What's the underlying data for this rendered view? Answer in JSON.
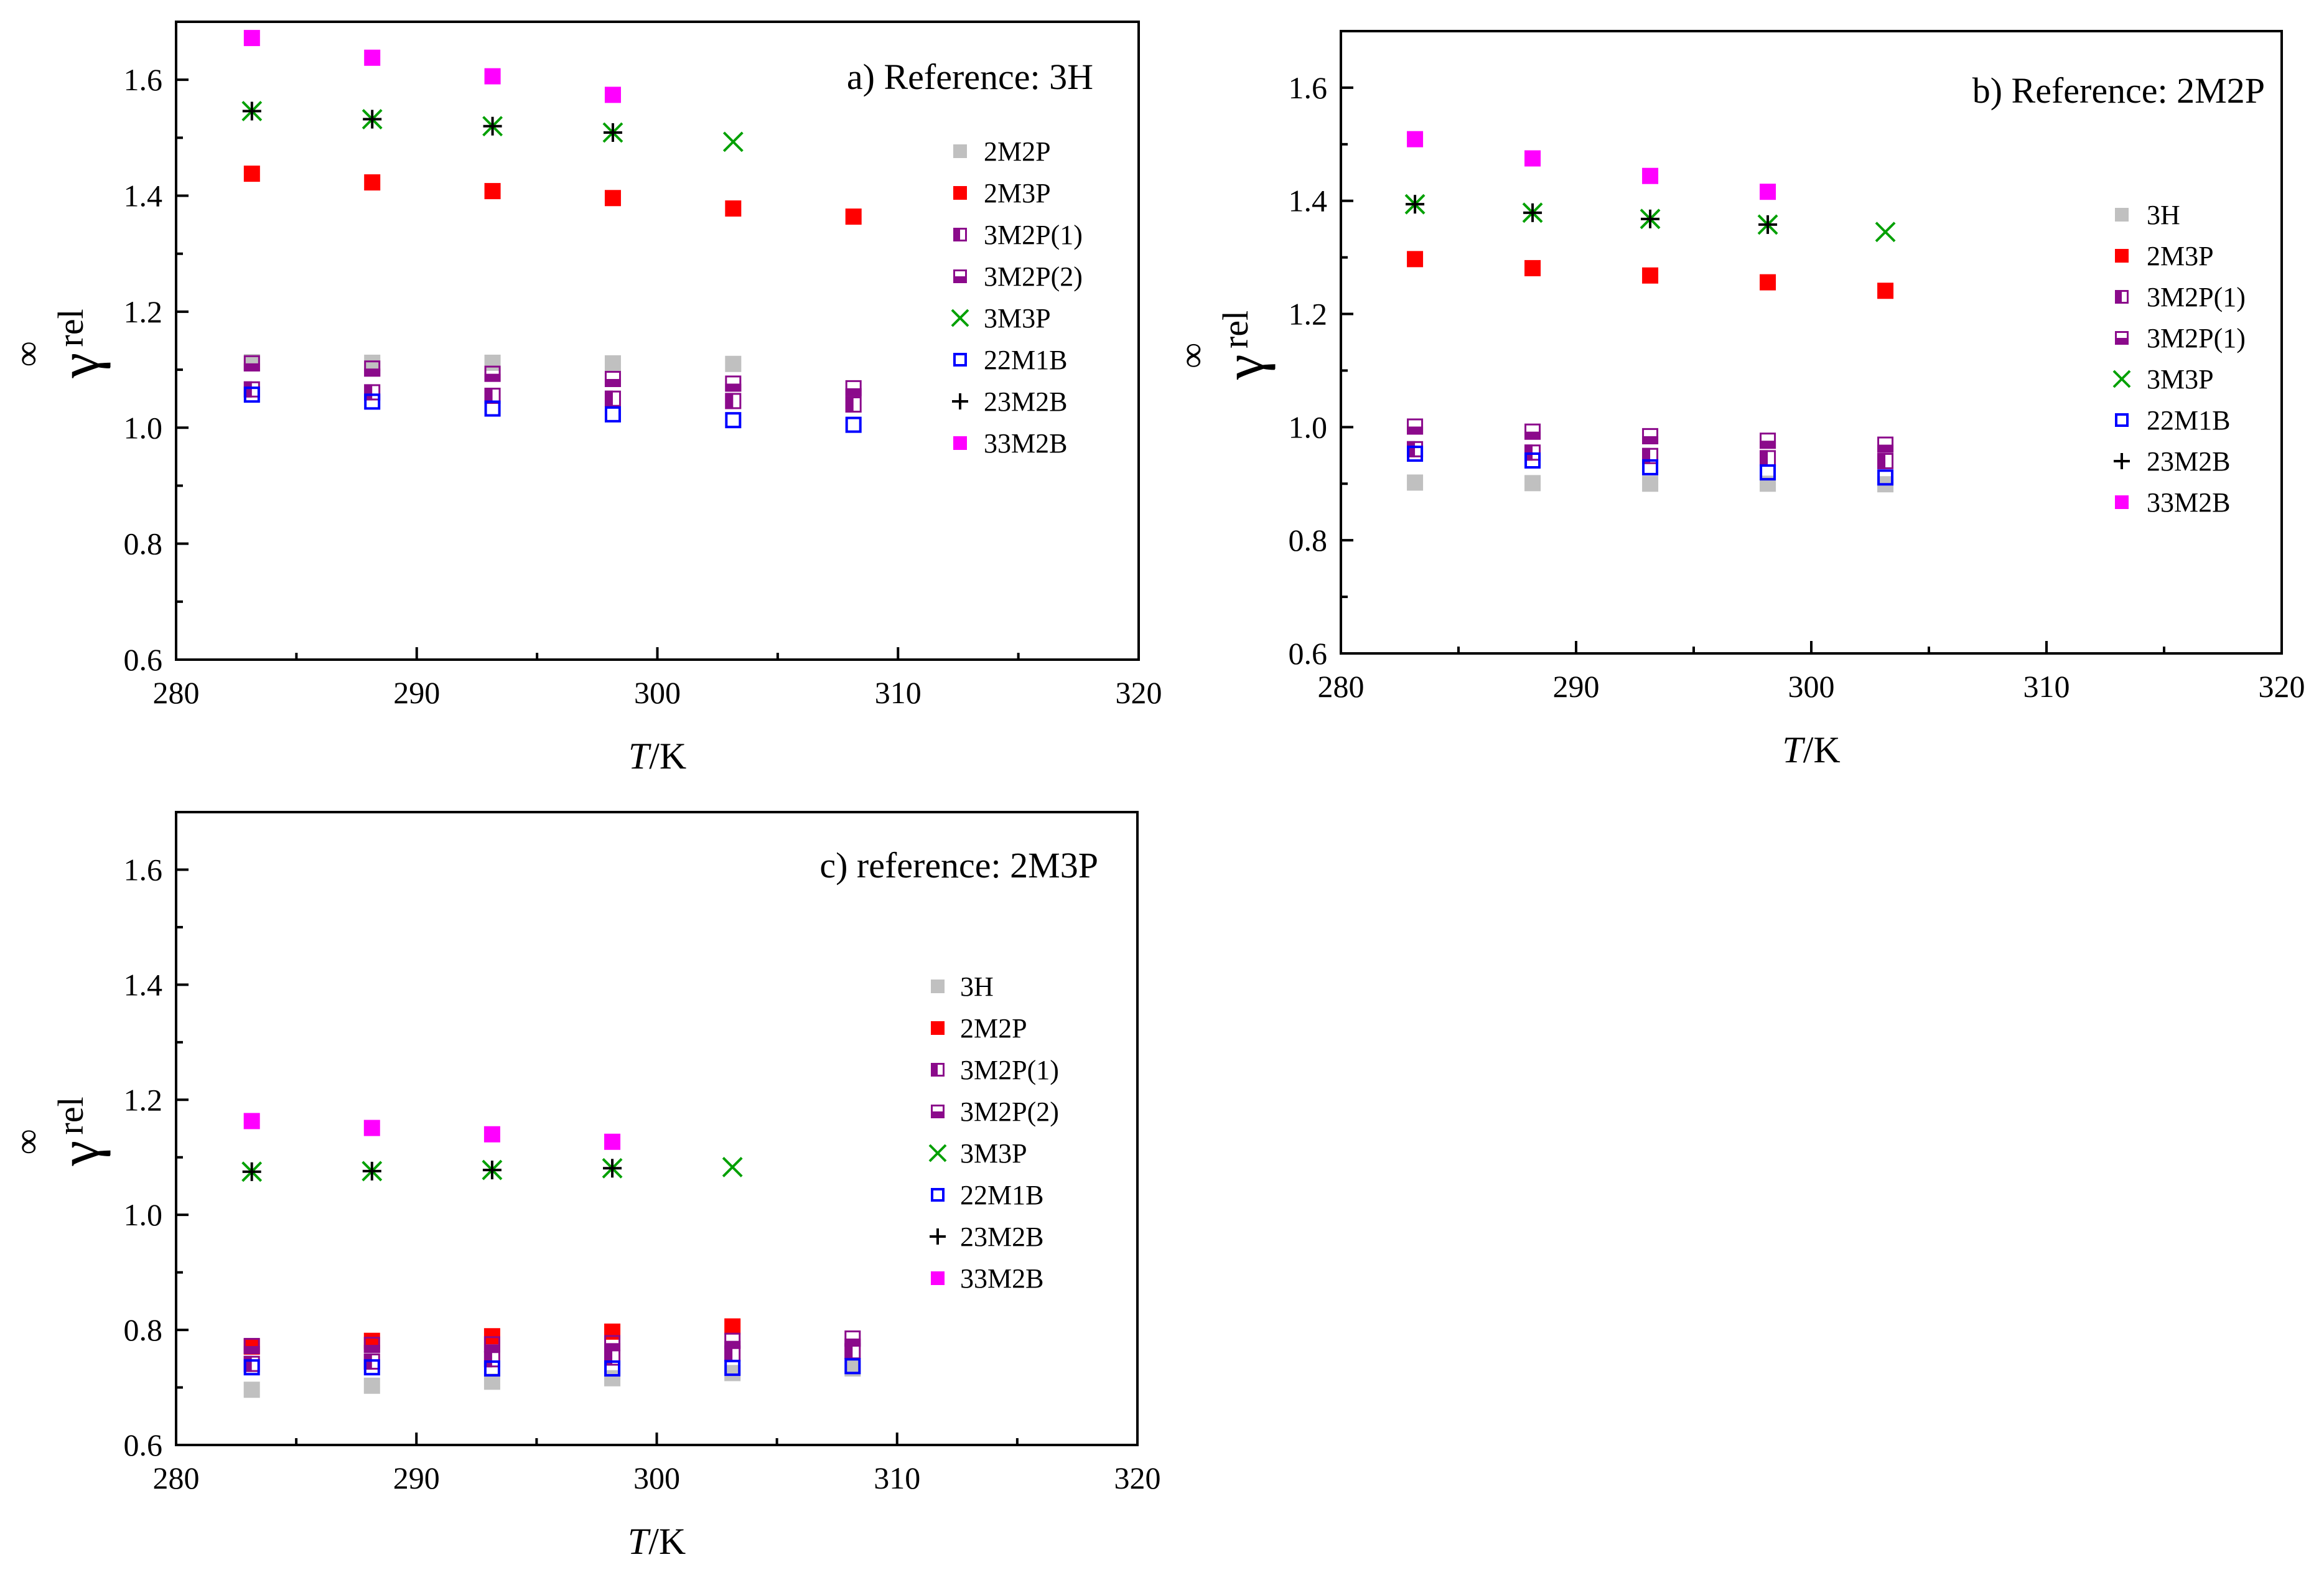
{
  "chart_data": [
    {
      "type": "scatter",
      "title": "a) Reference: 3H",
      "xlabel_italic": "T",
      "xlabel_unit": "/K",
      "ylabel_symbol": "γ",
      "ylabel_sup": "∞",
      "ylabel_sub": "rel",
      "xlim": [
        280,
        320
      ],
      "ylim": [
        0.6,
        1.7
      ],
      "xticks": [
        "280",
        "290",
        "300",
        "310",
        "320"
      ],
      "yticks": [
        "0.6",
        "0.8",
        "1.0",
        "1.2",
        "1.4",
        "1.6"
      ],
      "xtick_values": [
        280,
        290,
        300,
        310,
        320
      ],
      "ytick_values": [
        0.6,
        0.8,
        1.0,
        1.2,
        1.4,
        1.6
      ],
      "legend_position": "right",
      "series": [
        {
          "name": "2M2P",
          "marker": "sq-gray",
          "x": [
            283.15,
            288.15,
            293.15,
            298.15,
            303.15
          ],
          "y": [
            1.113,
            1.112,
            1.112,
            1.111,
            1.11
          ]
        },
        {
          "name": "2M3P",
          "marker": "sq-red",
          "x": [
            283.15,
            288.15,
            293.15,
            298.15,
            303.15,
            308.15
          ],
          "y": [
            1.438,
            1.423,
            1.408,
            1.396,
            1.378,
            1.364
          ]
        },
        {
          "name": "3M2P(1)",
          "marker": "half-left",
          "x": [
            283.15,
            288.15,
            293.15,
            298.15,
            303.15,
            308.15
          ],
          "y": [
            1.066,
            1.061,
            1.055,
            1.05,
            1.046,
            1.04
          ]
        },
        {
          "name": "3M2P(2)",
          "marker": "half-bottom",
          "x": [
            283.15,
            288.15,
            293.15,
            298.15,
            303.15,
            308.15
          ],
          "y": [
            1.111,
            1.102,
            1.093,
            1.084,
            1.076,
            1.068
          ]
        },
        {
          "name": "3M3P",
          "marker": "x-green",
          "x": [
            283.15,
            288.15,
            293.15,
            298.15,
            303.15
          ],
          "y": [
            1.546,
            1.532,
            1.52,
            1.509,
            1.493
          ]
        },
        {
          "name": "22M1B",
          "marker": "sq-blue-open",
          "x": [
            283.15,
            288.15,
            293.15,
            298.15,
            303.15,
            308.15
          ],
          "y": [
            1.057,
            1.045,
            1.033,
            1.023,
            1.013,
            1.005
          ]
        },
        {
          "name": "23M2B",
          "marker": "plus-black",
          "x": [
            283.15,
            288.15,
            293.15,
            298.15
          ],
          "y": [
            1.546,
            1.532,
            1.52,
            1.509
          ]
        },
        {
          "name": "33M2B",
          "marker": "sq-magenta",
          "x": [
            283.15,
            288.15,
            293.15,
            298.15
          ],
          "y": [
            1.672,
            1.638,
            1.606,
            1.574
          ]
        }
      ]
    },
    {
      "type": "scatter",
      "title": "b) Reference: 2M2P",
      "xlabel_italic": "T",
      "xlabel_unit": "/K",
      "ylabel_symbol": "γ",
      "ylabel_sup": "∞",
      "ylabel_sub": "rel",
      "xlim": [
        280,
        320
      ],
      "ylim": [
        0.6,
        1.7
      ],
      "xticks": [
        "280",
        "290",
        "300",
        "310",
        "320"
      ],
      "yticks": [
        "0.6",
        "0.8",
        "1.0",
        "1.2",
        "1.4",
        "1.6"
      ],
      "xtick_values": [
        280,
        290,
        300,
        310,
        320
      ],
      "ytick_values": [
        0.6,
        0.8,
        1.0,
        1.2,
        1.4,
        1.6
      ],
      "legend_position": "right",
      "series": [
        {
          "name": "3H",
          "marker": "sq-gray",
          "x": [
            283.15,
            288.15,
            293.15,
            298.15,
            303.15
          ],
          "y": [
            0.902,
            0.901,
            0.9,
            0.9,
            0.899
          ]
        },
        {
          "name": "2M3P",
          "marker": "sq-red",
          "x": [
            283.15,
            288.15,
            293.15,
            298.15,
            303.15
          ],
          "y": [
            1.297,
            1.281,
            1.268,
            1.256,
            1.241
          ]
        },
        {
          "name": "3M2P(1)",
          "marker": "half-left",
          "x": [
            283.15,
            288.15,
            293.15,
            298.15,
            303.15
          ],
          "y": [
            0.961,
            0.955,
            0.949,
            0.945,
            0.94
          ]
        },
        {
          "name": "3M2P(1)",
          "marker": "half-bottom",
          "x": [
            283.15,
            288.15,
            293.15,
            298.15,
            303.15
          ],
          "y": [
            1.001,
            0.992,
            0.984,
            0.976,
            0.969
          ]
        },
        {
          "name": "3M3P",
          "marker": "x-green",
          "x": [
            283.15,
            288.15,
            293.15,
            298.15,
            303.15
          ],
          "y": [
            1.394,
            1.379,
            1.368,
            1.358,
            1.345
          ]
        },
        {
          "name": "22M1B",
          "marker": "sq-blue-open",
          "x": [
            283.15,
            288.15,
            293.15,
            298.15,
            303.15
          ],
          "y": [
            0.953,
            0.941,
            0.929,
            0.92,
            0.911
          ]
        },
        {
          "name": "23M2B",
          "marker": "plus-black",
          "x": [
            283.15,
            288.15,
            293.15,
            298.15
          ],
          "y": [
            1.394,
            1.379,
            1.368,
            1.358
          ]
        },
        {
          "name": "33M2B",
          "marker": "sq-magenta",
          "x": [
            283.15,
            288.15,
            293.15,
            298.15
          ],
          "y": [
            1.509,
            1.475,
            1.444,
            1.416
          ]
        }
      ]
    },
    {
      "type": "scatter",
      "title": "c) reference: 2M3P",
      "xlabel_italic": "T",
      "xlabel_unit": "/K",
      "ylabel_symbol": "γ",
      "ylabel_sup": "∞",
      "ylabel_sub": "rel",
      "xlim": [
        280,
        320
      ],
      "ylim": [
        0.6,
        1.7
      ],
      "xticks": [
        "280",
        "290",
        "300",
        "310",
        "320"
      ],
      "yticks": [
        "0.6",
        "0.8",
        "1.0",
        "1.2",
        "1.4",
        "1.6"
      ],
      "xtick_values": [
        280,
        290,
        300,
        310,
        320
      ],
      "ytick_values": [
        0.6,
        0.8,
        1.0,
        1.2,
        1.4,
        1.6
      ],
      "legend_position": "right",
      "series": [
        {
          "name": "3H",
          "marker": "sq-gray",
          "x": [
            283.15,
            288.15,
            293.15,
            298.15,
            303.15,
            308.15
          ],
          "y": [
            0.696,
            0.703,
            0.71,
            0.716,
            0.725,
            0.733
          ]
        },
        {
          "name": "2M2P",
          "marker": "sq-red",
          "x": [
            283.15,
            288.15,
            293.15,
            298.15,
            303.15
          ],
          "y": [
            0.771,
            0.781,
            0.789,
            0.797,
            0.806
          ]
        },
        {
          "name": "3M2P(1)",
          "marker": "half-left",
          "x": [
            283.15,
            288.15,
            293.15,
            298.15,
            303.15,
            308.15
          ],
          "y": [
            0.741,
            0.745,
            0.749,
            0.752,
            0.759,
            0.763
          ]
        },
        {
          "name": "3M2P(2)",
          "marker": "half-bottom",
          "x": [
            283.15,
            288.15,
            293.15,
            298.15,
            303.15,
            308.15
          ],
          "y": [
            0.772,
            0.774,
            0.775,
            0.777,
            0.781,
            0.785
          ]
        },
        {
          "name": "3M3P",
          "marker": "x-green",
          "x": [
            283.15,
            288.15,
            293.15,
            298.15,
            303.15
          ],
          "y": [
            1.075,
            1.076,
            1.078,
            1.081,
            1.083
          ]
        },
        {
          "name": "22M1B",
          "marker": "sq-blue-open",
          "x": [
            283.15,
            288.15,
            293.15,
            298.15,
            303.15,
            308.15
          ],
          "y": [
            0.735,
            0.735,
            0.733,
            0.733,
            0.734,
            0.737
          ]
        },
        {
          "name": "23M2B",
          "marker": "plus-black",
          "x": [
            283.15,
            288.15,
            293.15,
            298.15
          ],
          "y": [
            1.075,
            1.076,
            1.078,
            1.081
          ]
        },
        {
          "name": "33M2B",
          "marker": "sq-magenta",
          "x": [
            283.15,
            288.15,
            293.15,
            298.15
          ],
          "y": [
            1.163,
            1.151,
            1.14,
            1.127
          ]
        }
      ]
    }
  ],
  "colors": {
    "gray": "#c0c0c0",
    "red": "#ff0000",
    "purple": "#8b0a8b",
    "green": "#00a000",
    "blue": "#0000ff",
    "black": "#000000",
    "magenta": "#ff00ff"
  }
}
